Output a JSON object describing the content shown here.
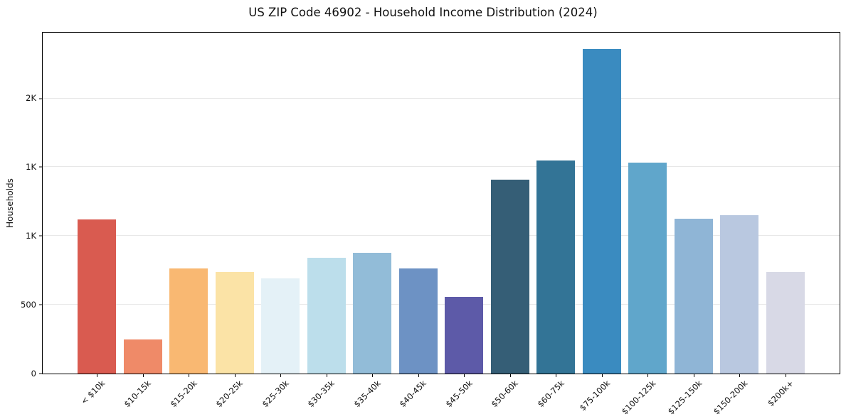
{
  "title": "US ZIP Code 46902 - Household Income Distribution (2024)",
  "chart_data": {
    "type": "bar",
    "title": "US ZIP Code 46902 - Household Income Distribution (2024)",
    "xlabel": "",
    "ylabel": "Households",
    "categories": [
      "< $10k",
      "$10-15k",
      "$15-20k",
      "$20-25k",
      "$25-30k",
      "$30-35k",
      "$35-40k",
      "$40-45k",
      "$45-50k",
      "$50-60k",
      "$60-75k",
      "$75-100k",
      "$100-125k",
      "$125-150k",
      "$150-200k",
      "$200k+"
    ],
    "values": [
      1120,
      250,
      765,
      740,
      690,
      840,
      880,
      765,
      560,
      1410,
      1550,
      2360,
      1535,
      1125,
      1150,
      740
    ],
    "bar_colors": [
      "#d95b50",
      "#ef8a68",
      "#f9b872",
      "#fbe3a6",
      "#e4f1f7",
      "#bcdeeb",
      "#92bcd8",
      "#6d92c4",
      "#5d5aa8",
      "#355e76",
      "#337496",
      "#3a8bc0",
      "#60a6cb",
      "#8fb5d6",
      "#b9c8e0",
      "#d8d9e6"
    ],
    "ylim": [
      0,
      2478
    ],
    "yticks": [
      {
        "value": 0,
        "label": "0"
      },
      {
        "value": 500,
        "label": "500"
      },
      {
        "value": 1000,
        "label": "1K"
      },
      {
        "value": 1500,
        "label": "1K"
      },
      {
        "value": 2000,
        "label": "2K"
      }
    ],
    "grid": "horizontal",
    "gridline_color": "#e7e7e7",
    "legend": "none",
    "background": "#ffffff"
  }
}
